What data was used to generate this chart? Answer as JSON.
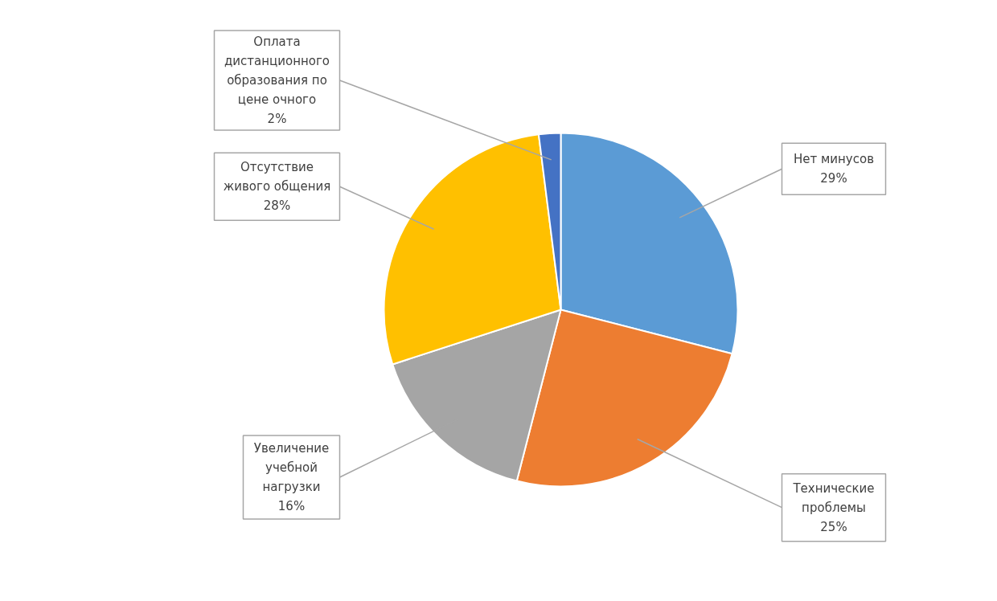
{
  "chart_data": {
    "type": "pie",
    "categories": [
      "Нет минусов",
      "Технические проблемы",
      "Увеличение учебной нагрузки",
      "Отсутствие живого общения",
      "Оплата дистанционного образования по цене очного"
    ],
    "values": [
      29,
      25,
      16,
      28,
      2
    ],
    "colors": [
      "#5b9bd5",
      "#ed7d31",
      "#a5a5a5",
      "#ffc000",
      "#4472c4"
    ],
    "value_labels": [
      "29%",
      "25%",
      "16%",
      "28%",
      "2%"
    ]
  }
}
